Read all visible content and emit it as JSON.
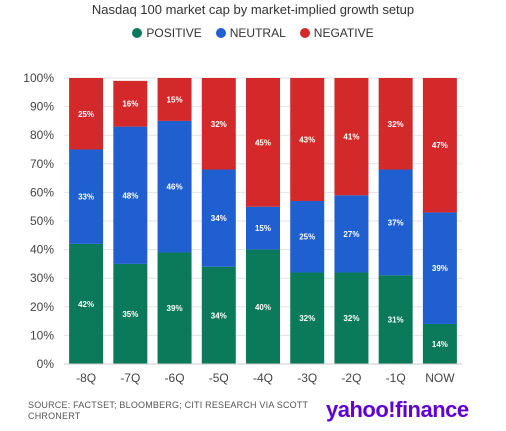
{
  "chart_data": {
    "type": "bar",
    "stacked": true,
    "title": "Nasdaq 100 market cap by market-implied growth setup",
    "categories": [
      "-8Q",
      "-7Q",
      "-6Q",
      "-5Q",
      "-4Q",
      "-3Q",
      "-2Q",
      "-1Q",
      "NOW"
    ],
    "series": [
      {
        "name": "POSITIVE",
        "color": "#0b7a5a",
        "values": [
          42,
          35,
          39,
          34,
          40,
          32,
          32,
          31,
          14
        ]
      },
      {
        "name": "NEUTRAL",
        "color": "#1f5fcf",
        "values": [
          33,
          48,
          46,
          34,
          15,
          25,
          27,
          37,
          39
        ]
      },
      {
        "name": "NEGATIVE",
        "color": "#d3292a",
        "values": [
          25,
          16,
          15,
          32,
          45,
          43,
          41,
          32,
          47
        ]
      }
    ],
    "data_labels": [
      [
        "42%",
        "35%",
        "39%",
        "34%",
        "40%",
        "32%",
        "32%",
        "31%",
        "14%"
      ],
      [
        "33%",
        "48%",
        "46%",
        "34%",
        "15%",
        "25%",
        "27%",
        "37%",
        "39%"
      ],
      [
        "25%",
        "16%",
        "15%",
        "32%",
        "45%",
        "43%",
        "41%",
        "32%",
        "47%"
      ]
    ],
    "ylim": [
      0,
      100
    ],
    "yticks": [
      "0%",
      "10%",
      "20%",
      "30%",
      "40%",
      "50%",
      "60%",
      "70%",
      "80%",
      "90%",
      "100%"
    ],
    "xlabel": "",
    "ylabel": "",
    "grid": true,
    "legend_position": "top-center"
  },
  "source_text": "SOURCE: FACTSET; BLOOMBERG; CITI RESEARCH VIA SCOTT CHRONERT",
  "logo_text": "yahoo!finance"
}
